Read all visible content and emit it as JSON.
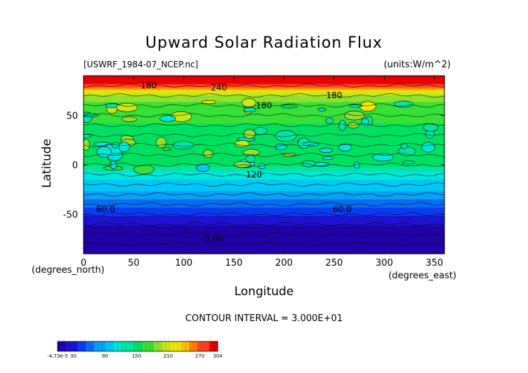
{
  "chart_data": {
    "type": "heatmap",
    "title": "Upward Solar Radiation Flux",
    "file_label": "[USWRF_1984-07_NCEP.nc]",
    "units_label": "(units:W/m^2)",
    "xlabel": "Longitude",
    "ylabel": "Latitude",
    "x_unit_label": "(degrees_east)",
    "y_unit_label": "(degrees_north)",
    "xlim": [
      0,
      360
    ],
    "ylim": [
      -90,
      90
    ],
    "x_ticks": [
      0,
      50,
      100,
      150,
      200,
      250,
      300,
      350
    ],
    "y_ticks": [
      50,
      0,
      -50
    ],
    "contour_interval_text": "CONTOUR INTERVAL = 3.000E+01",
    "contour_labels": [
      {
        "text": "180",
        "lon": 65,
        "lat": 80
      },
      {
        "text": "240",
        "lon": 135,
        "lat": 78
      },
      {
        "text": "180",
        "lon": 250,
        "lat": 70
      },
      {
        "text": "180",
        "lon": 180,
        "lat": 60
      },
      {
        "text": "120",
        "lon": 170,
        "lat": -10
      },
      {
        "text": "60.0",
        "lon": 22,
        "lat": -45
      },
      {
        "text": "60.0",
        "lon": 258,
        "lat": -45
      },
      {
        "text": "0.00",
        "lon": 130,
        "lat": -75
      }
    ],
    "latitude_profile": [
      {
        "lat": 90,
        "value": 290
      },
      {
        "lat": 80,
        "value": 285
      },
      {
        "lat": 70,
        "value": 190
      },
      {
        "lat": 60,
        "value": 175
      },
      {
        "lat": 50,
        "value": 165
      },
      {
        "lat": 40,
        "value": 160
      },
      {
        "lat": 30,
        "value": 158
      },
      {
        "lat": 20,
        "value": 155
      },
      {
        "lat": 10,
        "value": 155
      },
      {
        "lat": 0,
        "value": 150
      },
      {
        "lat": -10,
        "value": 115
      },
      {
        "lat": -20,
        "value": 100
      },
      {
        "lat": -30,
        "value": 85
      },
      {
        "lat": -40,
        "value": 60
      },
      {
        "lat": -50,
        "value": 40
      },
      {
        "lat": -60,
        "value": 20
      },
      {
        "lat": -70,
        "value": 10
      },
      {
        "lat": -80,
        "value": 0
      },
      {
        "lat": -90,
        "value": 0
      }
    ],
    "colorbar": {
      "min": -4.73e-05,
      "max": 304,
      "tick_labels": [
        "-4.73e-5",
        "30",
        "90",
        "150",
        "210",
        "270",
        "304"
      ],
      "tick_values": [
        0,
        30,
        90,
        150,
        210,
        270,
        304
      ],
      "colors": [
        "#2200a8",
        "#1a14d0",
        "#0a3cf0",
        "#0a6cf0",
        "#0aa0f5",
        "#00c8f5",
        "#00e6d8",
        "#00e6a0",
        "#00e060",
        "#38e038",
        "#90e030",
        "#c8e818",
        "#f0e800",
        "#ffc000",
        "#ff8000",
        "#ff4020",
        "#e80000"
      ]
    }
  }
}
